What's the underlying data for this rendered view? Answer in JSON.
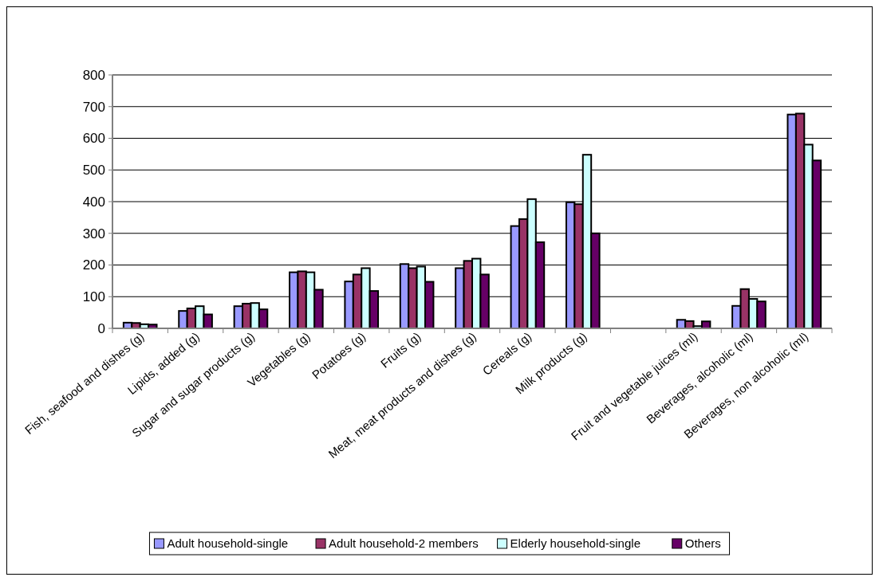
{
  "chart_data": {
    "type": "bar",
    "categories": [
      "Fish, seafood and dishes (g)",
      "Lipids, added (g)",
      "Sugar and sugar products (g)",
      "Vegetables (g)",
      "Potatoes (g)",
      "Fruits (g)",
      "Meat, meat products and dishes (g)",
      "Cereals (g)",
      "Milk products (g)",
      null,
      "Fruit and vegetable juices (ml)",
      "Beverages, alcoholic (ml)",
      "Beverages, non alcoholic (ml)"
    ],
    "series": [
      {
        "name": "Adult household-single",
        "color": "#9999ff",
        "values": [
          18,
          55,
          70,
          177,
          148,
          203,
          190,
          323,
          398,
          null,
          27,
          71,
          675
        ]
      },
      {
        "name": "Adult household-2 members",
        "color": "#993366",
        "values": [
          17,
          63,
          78,
          180,
          170,
          190,
          213,
          345,
          392,
          null,
          23,
          124,
          678
        ]
      },
      {
        "name": "Elderly household-single",
        "color": "#ccffff",
        "values": [
          13,
          70,
          80,
          177,
          190,
          195,
          220,
          408,
          548,
          null,
          7,
          93,
          580
        ]
      },
      {
        "name": "Others",
        "color": "#660066",
        "values": [
          12,
          44,
          60,
          122,
          118,
          147,
          170,
          272,
          300,
          null,
          22,
          85,
          530
        ]
      }
    ],
    "ylim": [
      0,
      800
    ],
    "yticks": [
      0,
      100,
      200,
      300,
      400,
      500,
      600,
      700,
      800
    ],
    "grid": "y",
    "legend": "bottom"
  }
}
